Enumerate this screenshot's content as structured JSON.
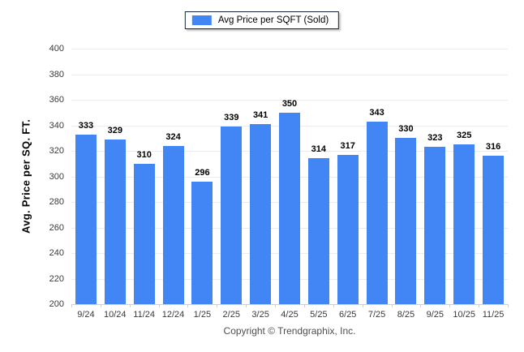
{
  "legend": {
    "label": "Avg Price per SQFT (Sold)",
    "swatch_color": "#4285f4"
  },
  "footer": {
    "copyright": "Copyright © Trendgraphix, Inc."
  },
  "colors": {
    "bar": "#4285f4",
    "grid": "#ececec",
    "axis_line": "#cfcfcf",
    "tick_label": "#3a3a3a",
    "value_label": "#000000",
    "legend_border": "#16233f",
    "background": "#ffffff"
  },
  "chart_data": {
    "type": "bar",
    "title": "Avg Price per SQFT (Sold)",
    "categories": [
      "9/24",
      "10/24",
      "11/24",
      "12/24",
      "1/25",
      "2/25",
      "3/25",
      "4/25",
      "5/25",
      "6/25",
      "7/25",
      "8/25",
      "9/25",
      "10/25",
      "11/25"
    ],
    "values": [
      333,
      329,
      310,
      324,
      296,
      339,
      341,
      350,
      314,
      317,
      343,
      330,
      323,
      325,
      316
    ],
    "xlabel": "",
    "ylabel": "Avg. Price per SQ. FT.",
    "ylim": [
      200,
      400
    ],
    "ytick_step": 20,
    "yticks": [
      400,
      380,
      360,
      340,
      320,
      300,
      280,
      260,
      240,
      220,
      200
    ],
    "grid": "horizontal",
    "legend_position": "top-center",
    "value_labels": true
  }
}
